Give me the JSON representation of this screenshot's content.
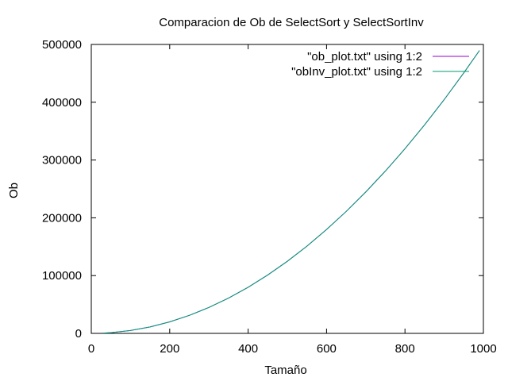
{
  "chart_data": {
    "type": "line",
    "title": "Comparacion de Ob de SelectSort y SelectSortInv",
    "xlabel": "Tamaño",
    "ylabel": "Ob",
    "xlim": [
      0,
      1000
    ],
    "ylim": [
      0,
      500000
    ],
    "xticks": [
      0,
      200,
      400,
      600,
      800,
      1000
    ],
    "yticks": [
      0,
      100000,
      200000,
      300000,
      400000,
      500000
    ],
    "xtick_labels": [
      "0",
      "200",
      "400",
      "600",
      "800",
      "1000"
    ],
    "ytick_labels": [
      "0",
      "100000",
      "200000",
      "300000",
      "400000",
      "500000"
    ],
    "grid": false,
    "legend_position": "top-right",
    "series": [
      {
        "name": "\"ob_plot.txt\" using 1:2",
        "color": "#9400d3",
        "x": [
          30,
          50,
          100,
          150,
          200,
          250,
          300,
          350,
          400,
          450,
          500,
          550,
          600,
          650,
          700,
          750,
          800,
          850,
          900,
          950,
          990
        ],
        "y": [
          435,
          1225,
          4950,
          11175,
          19900,
          31125,
          44850,
          61075,
          79800,
          101025,
          124750,
          150975,
          179700,
          210925,
          244650,
          280875,
          319600,
          360825,
          404550,
          450775,
          489555
        ]
      },
      {
        "name": "\"obInv_plot.txt\" using 1:2",
        "color": "#009e73",
        "x": [
          30,
          50,
          100,
          150,
          200,
          250,
          300,
          350,
          400,
          450,
          500,
          550,
          600,
          650,
          700,
          750,
          800,
          850,
          900,
          950,
          990
        ],
        "y": [
          435,
          1225,
          4950,
          11175,
          19900,
          31125,
          44850,
          61075,
          79800,
          101025,
          124750,
          150975,
          179700,
          210925,
          244650,
          280875,
          319600,
          360825,
          404550,
          450775,
          489555
        ]
      }
    ]
  }
}
